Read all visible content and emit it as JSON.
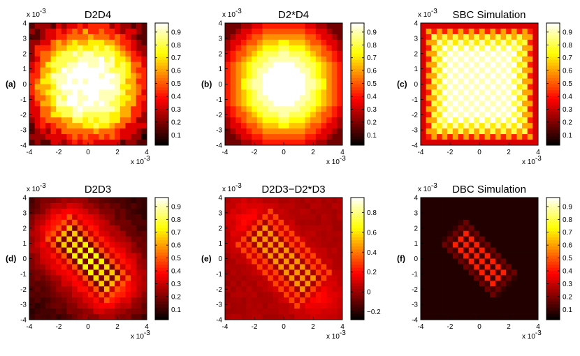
{
  "figure": {
    "colormap": "hot",
    "colorbar_max_color": "#ffffff",
    "colorbar_min_color": "#000000"
  },
  "chart_data": [
    {
      "type": "heatmap",
      "panel_label": "(a)",
      "title": "D2D4",
      "pattern": "noisy-disk",
      "xlim": [
        -4,
        4
      ],
      "ylim": [
        -4,
        4
      ],
      "x_ticks": [
        "-4",
        "-2",
        "0",
        "2",
        "4"
      ],
      "y_ticks": [
        "4",
        "3",
        "2",
        "1",
        "0",
        "-1",
        "-2",
        "-3",
        "-4"
      ],
      "x_multiplier": "x 10",
      "y_multiplier": "x 10",
      "exponent": "-3",
      "colorbar_range": [
        0.02,
        0.97
      ],
      "colorbar_ticks": [
        {
          "value": 0.9,
          "label": "0.9"
        },
        {
          "value": 0.8,
          "label": "0.8"
        },
        {
          "value": 0.7,
          "label": "0.7"
        },
        {
          "value": 0.6,
          "label": "0.6"
        },
        {
          "value": 0.5,
          "label": "0.5"
        },
        {
          "value": 0.4,
          "label": "0.4"
        },
        {
          "value": 0.3,
          "label": "0.3"
        },
        {
          "value": 0.2,
          "label": "0.2"
        },
        {
          "value": 0.1,
          "label": "0.1"
        }
      ]
    },
    {
      "type": "heatmap",
      "panel_label": "(b)",
      "title": "D2*D4",
      "pattern": "smooth-disk",
      "xlim": [
        -4,
        4
      ],
      "ylim": [
        -4,
        4
      ],
      "x_ticks": [
        "-4",
        "-2",
        "0",
        "2",
        "4"
      ],
      "y_ticks": [
        "4",
        "3",
        "2",
        "1",
        "0",
        "-1",
        "-2",
        "-3",
        "-4"
      ],
      "x_multiplier": "x 10",
      "y_multiplier": "x 10",
      "exponent": "-3",
      "colorbar_range": [
        0.02,
        0.97
      ],
      "colorbar_ticks": [
        {
          "value": 0.9,
          "label": "0.9"
        },
        {
          "value": 0.8,
          "label": "0.8"
        },
        {
          "value": 0.7,
          "label": "0.7"
        },
        {
          "value": 0.6,
          "label": "0.6"
        },
        {
          "value": 0.5,
          "label": "0.5"
        },
        {
          "value": 0.4,
          "label": "0.4"
        },
        {
          "value": 0.3,
          "label": "0.3"
        },
        {
          "value": 0.2,
          "label": "0.2"
        },
        {
          "value": 0.1,
          "label": "0.1"
        }
      ]
    },
    {
      "type": "heatmap",
      "panel_label": "(c)",
      "title": "SBC Simulation",
      "pattern": "lattice-disk",
      "xlim": [
        -4,
        4
      ],
      "ylim": [
        -4,
        4
      ],
      "x_ticks": [
        "-4",
        "-2",
        "0",
        "2",
        "4"
      ],
      "y_ticks": [
        "4",
        "3",
        "2",
        "1",
        "0",
        "-1",
        "-2",
        "-3",
        "-4"
      ],
      "x_multiplier": "x 10",
      "y_multiplier": "x 10",
      "exponent": "-3",
      "colorbar_range": [
        0.02,
        0.97
      ],
      "colorbar_ticks": [
        {
          "value": 0.9,
          "label": "0.9"
        },
        {
          "value": 0.8,
          "label": "0.8"
        },
        {
          "value": 0.7,
          "label": "0.7"
        },
        {
          "value": 0.6,
          "label": "0.6"
        },
        {
          "value": 0.5,
          "label": "0.5"
        },
        {
          "value": 0.4,
          "label": "0.4"
        },
        {
          "value": 0.3,
          "label": "0.3"
        },
        {
          "value": 0.2,
          "label": "0.2"
        },
        {
          "value": 0.1,
          "label": "0.1"
        }
      ]
    },
    {
      "type": "heatmap",
      "panel_label": "(d)",
      "title": "D2D3",
      "pattern": "diagonal-checker",
      "xlim": [
        -4,
        4
      ],
      "ylim": [
        -4,
        4
      ],
      "x_ticks": [
        "-4",
        "-2",
        "0",
        "2",
        "4"
      ],
      "y_ticks": [
        "4",
        "3",
        "2",
        "1",
        "0",
        "-1",
        "-2",
        "-3",
        "-4"
      ],
      "x_multiplier": "x 10",
      "y_multiplier": "x 10",
      "exponent": "-3",
      "colorbar_range": [
        0.02,
        0.97
      ],
      "colorbar_ticks": [
        {
          "value": 0.9,
          "label": "0.9"
        },
        {
          "value": 0.8,
          "label": "0.8"
        },
        {
          "value": 0.7,
          "label": "0.7"
        },
        {
          "value": 0.6,
          "label": "0.6"
        },
        {
          "value": 0.5,
          "label": "0.5"
        },
        {
          "value": 0.4,
          "label": "0.4"
        },
        {
          "value": 0.3,
          "label": "0.3"
        },
        {
          "value": 0.2,
          "label": "0.2"
        },
        {
          "value": 0.1,
          "label": "0.1"
        }
      ]
    },
    {
      "type": "heatmap",
      "panel_label": "(e)",
      "title": "D2D3−D2*D3",
      "pattern": "diagonal-checker-difference",
      "xlim": [
        -4,
        4
      ],
      "ylim": [
        -4,
        4
      ],
      "x_ticks": [
        "-4",
        "-2",
        "0",
        "2",
        "4"
      ],
      "y_ticks": [
        "4",
        "3",
        "2",
        "1",
        "0",
        "-1",
        "-2",
        "-3",
        "-4"
      ],
      "x_multiplier": "x 10",
      "y_multiplier": "x 10",
      "exponent": "-3",
      "colorbar_range": [
        -0.28,
        0.95
      ],
      "colorbar_ticks": [
        {
          "value": 0.8,
          "label": "0.8"
        },
        {
          "value": 0.6,
          "label": "0.6"
        },
        {
          "value": 0.4,
          "label": "0.4"
        },
        {
          "value": 0.2,
          "label": "0.2"
        },
        {
          "value": 0.0,
          "label": "0"
        },
        {
          "value": -0.2,
          "label": "−0.2"
        }
      ]
    },
    {
      "type": "heatmap",
      "panel_label": "(f)",
      "title": "DBC Simulation",
      "pattern": "diagonal-checker-sharp",
      "xlim": [
        -4,
        4
      ],
      "ylim": [
        -4,
        4
      ],
      "x_ticks": [
        "-4",
        "-2",
        "0",
        "2",
        "4"
      ],
      "y_ticks": [
        "4",
        "3",
        "2",
        "1",
        "0",
        "-1",
        "-2",
        "-3",
        "-4"
      ],
      "x_multiplier": "x 10",
      "y_multiplier": "x 10",
      "exponent": "-3",
      "colorbar_range": [
        0.02,
        0.97
      ],
      "colorbar_ticks": [
        {
          "value": 0.9,
          "label": "0.9"
        },
        {
          "value": 0.8,
          "label": "0.8"
        },
        {
          "value": 0.7,
          "label": "0.7"
        },
        {
          "value": 0.6,
          "label": "0.6"
        },
        {
          "value": 0.5,
          "label": "0.5"
        },
        {
          "value": 0.4,
          "label": "0.4"
        },
        {
          "value": 0.3,
          "label": "0.3"
        },
        {
          "value": 0.2,
          "label": "0.2"
        },
        {
          "value": 0.1,
          "label": "0.1"
        }
      ]
    }
  ]
}
